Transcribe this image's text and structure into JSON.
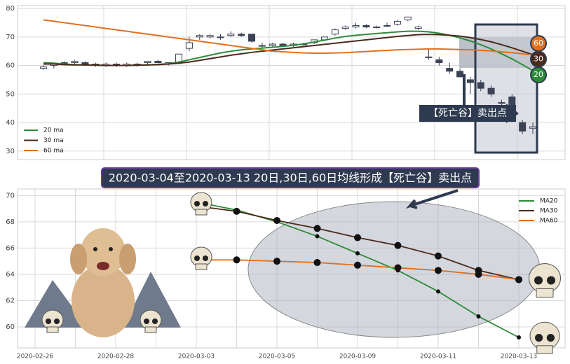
{
  "title": "2020-03-04至2020-03-13 20日,30日,60日均线形成【死亡谷】卖出点",
  "chart_data": [
    {
      "type": "candlestick",
      "candles": {
        "open": [
          59,
          60,
          61,
          61,
          61,
          60.5,
          60,
          60.5,
          60,
          60,
          61,
          61.5,
          60.5,
          61,
          66,
          70,
          70,
          70,
          70.5,
          71,
          71,
          67,
          67,
          67.5,
          67,
          67.5,
          68,
          69,
          71,
          73,
          73.5,
          74,
          73.5,
          74,
          74.5,
          76,
          73,
          63,
          62,
          59,
          58,
          55,
          54,
          52,
          47,
          49,
          40,
          38
        ],
        "high": [
          60,
          61,
          61.5,
          62,
          61.5,
          61,
          61,
          61,
          61,
          61,
          61.5,
          62,
          61,
          64,
          70,
          71,
          71,
          71,
          72,
          71.5,
          71,
          68,
          68,
          68,
          68,
          68,
          69,
          70,
          73,
          74,
          75,
          74.5,
          74,
          75,
          76,
          77,
          74,
          66,
          63,
          61,
          59,
          56,
          55,
          53,
          48,
          50,
          41,
          40
        ],
        "low": [
          58.5,
          59,
          60,
          60.5,
          60,
          59.5,
          59.5,
          59.5,
          59.5,
          59.5,
          60,
          61,
          60,
          60.5,
          65,
          69,
          69.5,
          69,
          70,
          70,
          68,
          66,
          66.5,
          67,
          66.5,
          67,
          67.5,
          68.5,
          70.5,
          72.5,
          73,
          73,
          73,
          73.5,
          74,
          75.5,
          72.5,
          62,
          60,
          57,
          56,
          50,
          51,
          49,
          45,
          44,
          36,
          36
        ],
        "close": [
          59.5,
          60.5,
          61,
          61.5,
          60.5,
          60,
          60.5,
          60,
          60.5,
          60.5,
          61.5,
          61,
          61,
          64,
          68,
          70.5,
          70.5,
          70,
          71,
          70.5,
          68.5,
          67,
          67.5,
          67,
          67.5,
          67.5,
          69,
          70,
          72.5,
          73.5,
          74,
          73.5,
          73.5,
          74,
          75.5,
          77,
          73.5,
          63,
          61,
          58,
          56,
          54,
          52,
          50,
          47,
          46,
          37,
          38.5
        ],
        "up_color": "#ffffff",
        "down_color": "#3b4256",
        "edge_color": "#3b4256"
      },
      "series": [
        {
          "name": "20 ma",
          "color": "#2e8b3a",
          "values": [
            61,
            60.8,
            60.5,
            60.3,
            60.2,
            60.1,
            60,
            60,
            60,
            60.1,
            60.2,
            60.4,
            60.6,
            61.2,
            62,
            62.8,
            63.6,
            64.4,
            65,
            65.5,
            65.8,
            66.1,
            66.4,
            66.7,
            67.1,
            67.6,
            68.2,
            68.9,
            69.6,
            70.2,
            70.6,
            70.9,
            71.2,
            71.5,
            71.8,
            72,
            72,
            71.8,
            71.3,
            70.6,
            69.7,
            68.6,
            67.3,
            65.8,
            64.1,
            62.3,
            60.3,
            58.2
          ]
        },
        {
          "name": "30 ma",
          "color": "#4a2a1c",
          "values": [
            60.5,
            60.5,
            60.3,
            60.2,
            60.2,
            60.1,
            60,
            60,
            60,
            60.1,
            60.2,
            60.3,
            60.5,
            60.8,
            61.2,
            61.8,
            62.4,
            63,
            63.6,
            64.1,
            64.6,
            65,
            65.4,
            65.8,
            66.2,
            66.6,
            67,
            67.4,
            67.8,
            68.2,
            68.6,
            69,
            69.4,
            69.8,
            70.2,
            70.5,
            70.8,
            70.9,
            70.8,
            70.6,
            70.3,
            69.8,
            69.1,
            68.3,
            67.3,
            66.2,
            65,
            63.8
          ]
        },
        {
          "name": "60 ma",
          "color": "#e07020",
          "values": [
            76,
            75.5,
            75,
            74.5,
            74,
            73.5,
            73,
            72.5,
            72,
            71.5,
            71,
            70.5,
            70,
            69.5,
            69,
            68.5,
            68,
            67.5,
            67,
            66.5,
            66,
            65.5,
            65,
            64.8,
            64.6,
            64.4,
            64.3,
            64.3,
            64.4,
            64.5,
            64.7,
            64.9,
            65.1,
            65.3,
            65.5,
            65.6,
            65.7,
            65.8,
            65.8,
            65.7,
            65.6,
            65.5,
            65.3,
            65.1,
            64.8,
            64.5,
            64.1,
            63.7
          ]
        }
      ],
      "ylim": [
        27,
        81
      ],
      "yticks": [
        30,
        40,
        50,
        60,
        70,
        80
      ],
      "grid": true,
      "legend": "lower left",
      "annotation": "【死亡谷】卖出点",
      "end_labels": [
        "60",
        "30",
        "20"
      ]
    },
    {
      "type": "line",
      "categories": [
        "2020-02-26",
        null,
        "2020-02-28",
        null,
        "2020-03-03",
        null,
        "2020-03-05",
        null,
        "2020-03-09",
        null,
        "2020-03-11",
        null,
        "2020-03-13"
      ],
      "series": [
        {
          "name": "MA20",
          "color": "#2e8b3a",
          "values": [
            null,
            null,
            null,
            null,
            69.5,
            68.9,
            68.0,
            66.9,
            65.6,
            64.3,
            62.7,
            60.8,
            59.2
          ]
        },
        {
          "name": "MA30",
          "color": "#4a2a1c",
          "values": [
            null,
            null,
            null,
            null,
            69.2,
            68.8,
            68.1,
            67.5,
            66.8,
            66.2,
            65.4,
            64.3,
            63.6
          ]
        },
        {
          "name": "MA60",
          "color": "#e07020",
          "values": [
            null,
            null,
            null,
            null,
            65.1,
            65.1,
            65.0,
            64.9,
            64.7,
            64.5,
            64.3,
            64.0,
            63.6
          ]
        }
      ],
      "ylim": [
        58.4,
        70.5
      ],
      "yticks": [
        60,
        62,
        64,
        66,
        68,
        70
      ],
      "grid": true,
      "legend": "upper right"
    }
  ]
}
